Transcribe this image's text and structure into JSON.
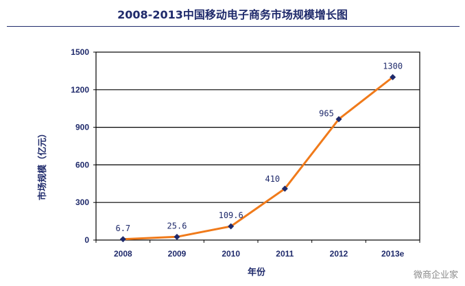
{
  "chart_data": {
    "type": "line",
    "title": "2008-2013中国移动电子商务市场规模增长图",
    "xlabel": "年份",
    "ylabel": "市场规模（亿元）",
    "categories": [
      "2008",
      "2009",
      "2010",
      "2011",
      "2012",
      "2013e"
    ],
    "values": [
      6.7,
      25.6,
      109.6,
      410,
      965,
      1300
    ],
    "data_labels": [
      "6.7",
      "25.6",
      "109.6",
      "410",
      "965",
      "1300"
    ],
    "yticks": [
      "0",
      "300",
      "600",
      "900",
      "1200",
      "1500"
    ],
    "ylim": [
      0,
      1500
    ],
    "grid": true,
    "line_color": "#f07a1a",
    "marker_color": "#1f2a6b"
  },
  "watermark": "微商企业家"
}
